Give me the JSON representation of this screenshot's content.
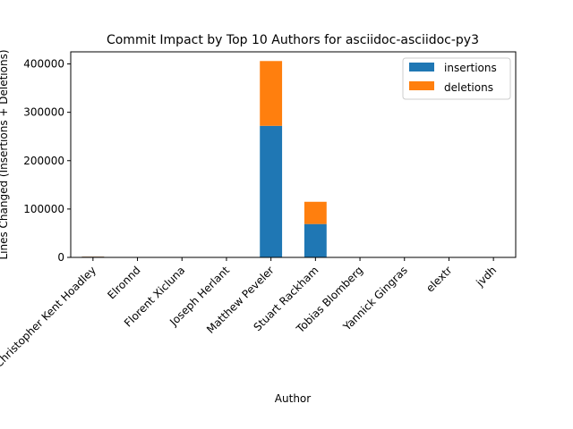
{
  "chart_data": {
    "type": "bar",
    "stacked": true,
    "title": "Commit Impact by Top 10 Authors for asciidoc-asciidoc-py3",
    "xlabel": "Author",
    "ylabel": "Lines Changed (Insertions + Deletions)",
    "categories": [
      "Christopher Kent Hoadley",
      "Elronnd",
      "Florent Xicluna",
      "Joseph Herlant",
      "Matthew Peveler",
      "Stuart Rackham",
      "Tobias Blomberg",
      "Yannick Gingras",
      "elextr",
      "jvdh"
    ],
    "series": [
      {
        "name": "insertions",
        "color": "#1f77b4",
        "values": [
          1500,
          10,
          20,
          15,
          272000,
          69000,
          20,
          10,
          5,
          5
        ]
      },
      {
        "name": "deletions",
        "color": "#ff7f0e",
        "values": [
          500,
          5,
          10,
          5,
          134000,
          46000,
          10,
          5,
          2,
          2
        ]
      }
    ],
    "ylim": [
      0,
      425000
    ],
    "yticks": [
      0,
      100000,
      200000,
      300000,
      400000
    ],
    "ytick_labels": [
      "0",
      "100000",
      "200000",
      "300000",
      "400000"
    ],
    "legend": "top-right",
    "grid": false
  }
}
